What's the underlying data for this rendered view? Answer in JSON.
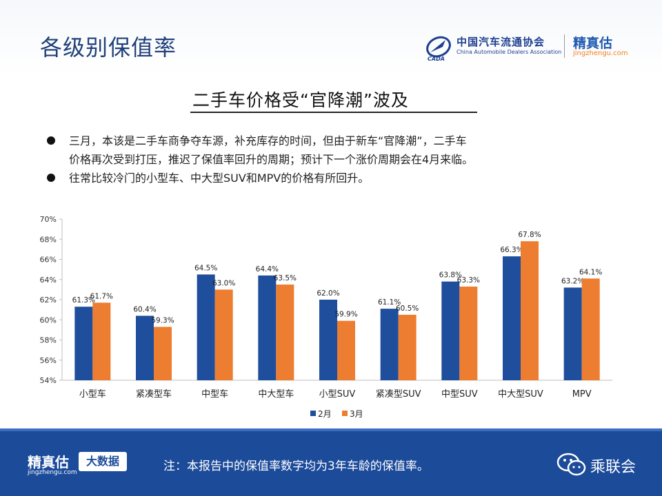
{
  "header": {
    "title": "各级别保值率",
    "org_logo": {
      "name": "中国汽车流通协会",
      "english": "China Automobile Dealers Association",
      "abbr": "CADA"
    },
    "brand_logo": {
      "name": "精真估",
      "url": "jingzhengu.com"
    }
  },
  "subtitle": "二手车价格受“官降潮”波及",
  "bullets": [
    {
      "lines": [
        "三月，本该是二手车商争夺车源，补充库存的时间，但由于新车“官降潮”，二手车",
        "价格再次受到打压，推迟了保值率回升的周期；预计下一个涨价周期会在4月来临。"
      ]
    },
    {
      "lines": [
        "往常比较冷门的小型车、中大型SUV和MPV的价格有所回升。"
      ]
    }
  ],
  "chart_data": {
    "type": "bar",
    "categories": [
      "小型车",
      "紧凑型车",
      "中型车",
      "中大型车",
      "小型SUV",
      "紧凑型SUV",
      "中型SUV",
      "中大型SUV",
      "MPV"
    ],
    "series": [
      {
        "name": "2月",
        "color": "#1f4e9c",
        "values": [
          61.3,
          60.4,
          64.5,
          64.4,
          62.0,
          61.1,
          63.8,
          66.3,
          63.2
        ],
        "labels": [
          "61.3%",
          "60.4%",
          "64.5%",
          "64.4%",
          "62.0%",
          "61.1%",
          "63.8%",
          "66.3%",
          "63.2%"
        ]
      },
      {
        "name": "3月",
        "color": "#ed7d31",
        "values": [
          61.7,
          59.3,
          63.0,
          63.5,
          59.9,
          60.5,
          63.3,
          67.8,
          64.1
        ],
        "labels": [
          "61.7%",
          "59.3%",
          "63.0%",
          "63.5%",
          "59.9%",
          "60.5%",
          "63.3%",
          "67.8%",
          "64.1%"
        ]
      }
    ],
    "ylim": [
      54,
      70
    ],
    "yticks": [
      54,
      56,
      58,
      60,
      62,
      64,
      66,
      68,
      70
    ],
    "ytick_labels": [
      "54%",
      "56%",
      "58%",
      "60%",
      "62%",
      "64%",
      "66%",
      "68%",
      "70%"
    ],
    "grid": false,
    "legend": "bottom-center"
  },
  "footer": {
    "logo": "精真估",
    "url": "jingzhengu.com",
    "badge": "大数据",
    "note": "注：本报告中的保值率数字均为3年车龄的保值率。",
    "org": "乘联会"
  }
}
